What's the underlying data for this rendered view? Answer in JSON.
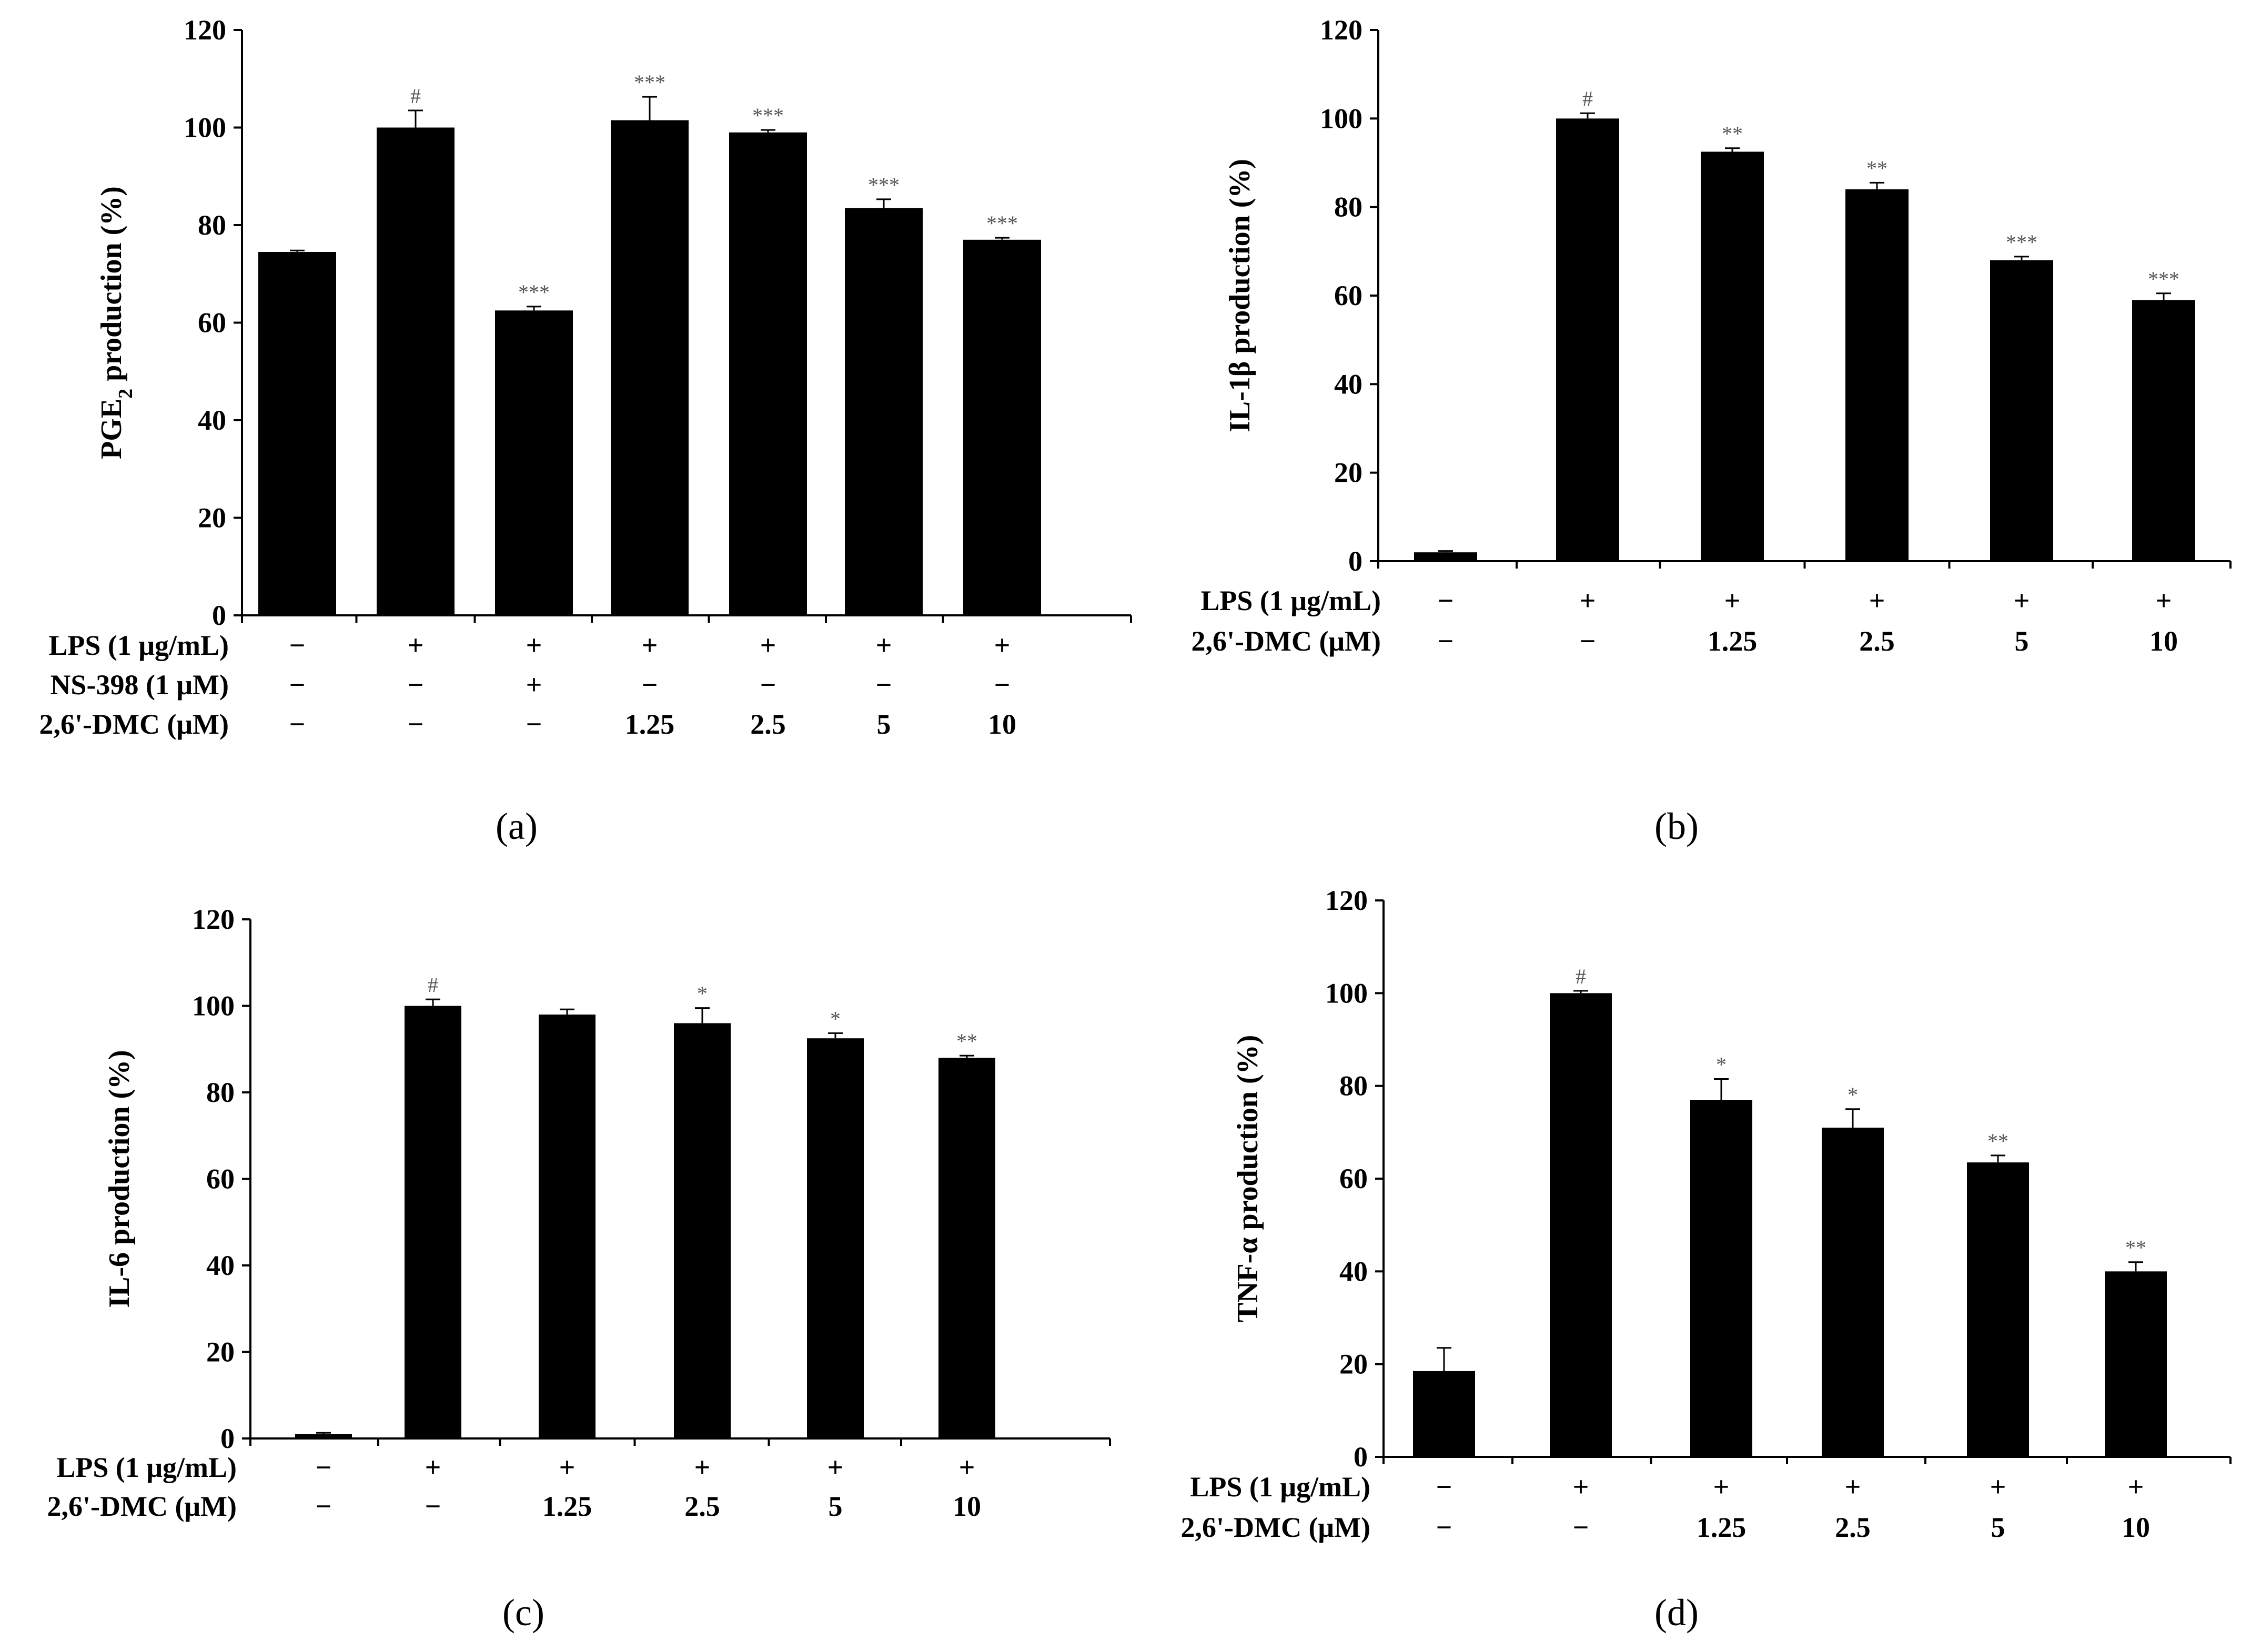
{
  "chart_data": [
    {
      "type": "bar",
      "panel_label": "(a)",
      "ylabel": "PGE",
      "ylabel_sub": "2",
      "ylabel_suffix": " production (%)",
      "ylim": [
        0,
        120
      ],
      "yticks": [
        "0",
        "20",
        "40",
        "60",
        "80",
        "100",
        "120"
      ],
      "values": [
        74.5,
        100,
        62.5,
        101.5,
        99,
        83.5,
        77
      ],
      "errors": [
        0.3,
        3.5,
        0.8,
        4.8,
        0.5,
        1.8,
        0.4
      ],
      "significance": [
        "",
        "#",
        "***",
        "***",
        "***",
        "***",
        "***"
      ],
      "treatment_rows": [
        {
          "label": "LPS (1 μg/mL)",
          "cells": [
            "−",
            "+",
            "+",
            "+",
            "+",
            "+",
            "+"
          ]
        },
        {
          "label": "NS-398 (1 μM)",
          "cells": [
            "−",
            "−",
            "+",
            "−",
            "−",
            "−",
            "−"
          ]
        },
        {
          "label": "2,6'-DMC (μM)",
          "cells": [
            "−",
            "−",
            "−",
            "1.25",
            "2.5",
            "5",
            "10"
          ]
        }
      ]
    },
    {
      "type": "bar",
      "panel_label": "(b)",
      "ylabel": "IL-1β production (%)",
      "ylim": [
        0,
        120
      ],
      "yticks": [
        "0",
        "20",
        "40",
        "60",
        "80",
        "100",
        "120"
      ],
      "values": [
        2,
        100,
        92.5,
        84,
        68,
        59
      ],
      "errors": [
        0.3,
        1.2,
        0.8,
        1.5,
        0.8,
        1.5
      ],
      "significance": [
        "",
        "#",
        "**",
        "**",
        "***",
        "***"
      ],
      "treatment_rows": [
        {
          "label": "LPS (1 μg/mL)",
          "cells": [
            "−",
            "+",
            "+",
            "+",
            "+",
            "+"
          ]
        },
        {
          "label": "2,6'-DMC (μM)",
          "cells": [
            "−",
            "−",
            "1.25",
            "2.5",
            "5",
            "10"
          ]
        }
      ]
    },
    {
      "type": "bar",
      "panel_label": "(c)",
      "ylabel": "IL-6 production (%)",
      "ylim": [
        0,
        120
      ],
      "yticks": [
        "0",
        "20",
        "40",
        "60",
        "80",
        "100",
        "120"
      ],
      "values": [
        1,
        100,
        98,
        96,
        92.5,
        88
      ],
      "errors": [
        0.3,
        1.5,
        1.2,
        3.5,
        1.2,
        0.5
      ],
      "significance": [
        "",
        "#",
        "",
        "*",
        "*",
        "**"
      ],
      "treatment_rows": [
        {
          "label": "LPS (1 μg/mL)",
          "cells": [
            "−",
            "+",
            "+",
            "+",
            "+",
            "+"
          ]
        },
        {
          "label": "2,6'-DMC (μM)",
          "cells": [
            "−",
            "−",
            "1.25",
            "2.5",
            "5",
            "10"
          ]
        }
      ]
    },
    {
      "type": "bar",
      "panel_label": "(d)",
      "ylabel": "TNF-α production (%)",
      "ylim": [
        0,
        120
      ],
      "yticks": [
        "0",
        "20",
        "40",
        "60",
        "80",
        "100",
        "120"
      ],
      "values": [
        18.5,
        100,
        77,
        71,
        63.5,
        40
      ],
      "errors": [
        5,
        0.5,
        4.5,
        4,
        1.5,
        2
      ],
      "significance": [
        "",
        "#",
        "*",
        "*",
        "**",
        "**"
      ],
      "treatment_rows": [
        {
          "label": "LPS (1 μg/mL)",
          "cells": [
            "−",
            "+",
            "+",
            "+",
            "+",
            "+"
          ]
        },
        {
          "label": "2,6'-DMC (μM)",
          "cells": [
            "−",
            "−",
            "1.25",
            "2.5",
            "5",
            "10"
          ]
        }
      ]
    }
  ]
}
